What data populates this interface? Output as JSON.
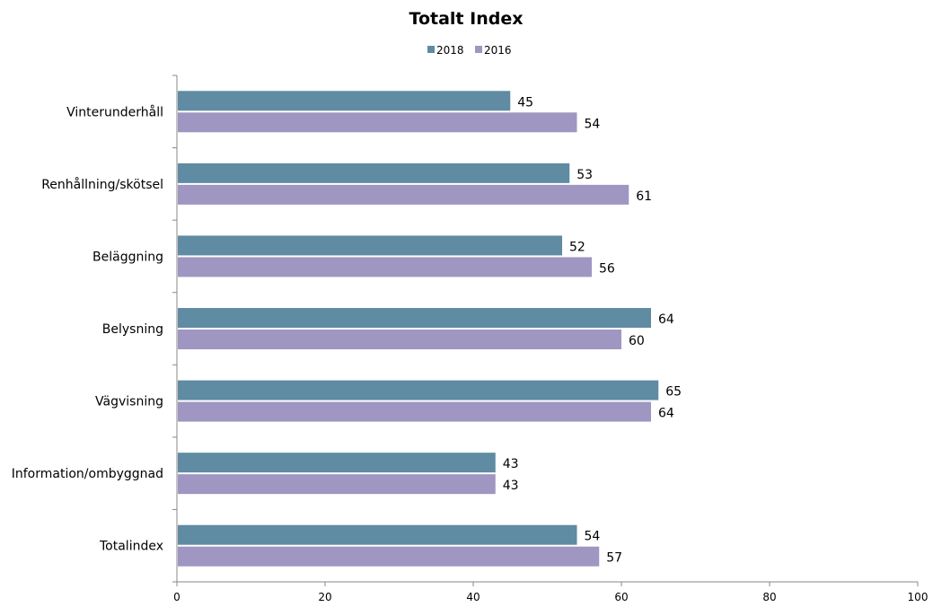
{
  "chart_data": {
    "type": "bar",
    "orientation": "horizontal",
    "title": "Totalt Index",
    "categories": [
      "Vinterunderhåll",
      "Renhållning/skötsel",
      "Beläggning",
      "Belysning",
      "Vägvisning",
      "Information/ombyggnad",
      "Totalindex"
    ],
    "series": [
      {
        "name": "2018",
        "values": [
          45,
          53,
          52,
          64,
          65,
          43,
          54
        ],
        "color": "#5f8ba3"
      },
      {
        "name": "2016",
        "values": [
          54,
          61,
          56,
          60,
          64,
          43,
          57
        ],
        "color": "#a096c2"
      }
    ],
    "xlim": [
      0,
      100
    ],
    "x_ticks": [
      0,
      20,
      40,
      60,
      80,
      100
    ],
    "grid": false,
    "legend_position": "top-center",
    "data_labels": true
  }
}
